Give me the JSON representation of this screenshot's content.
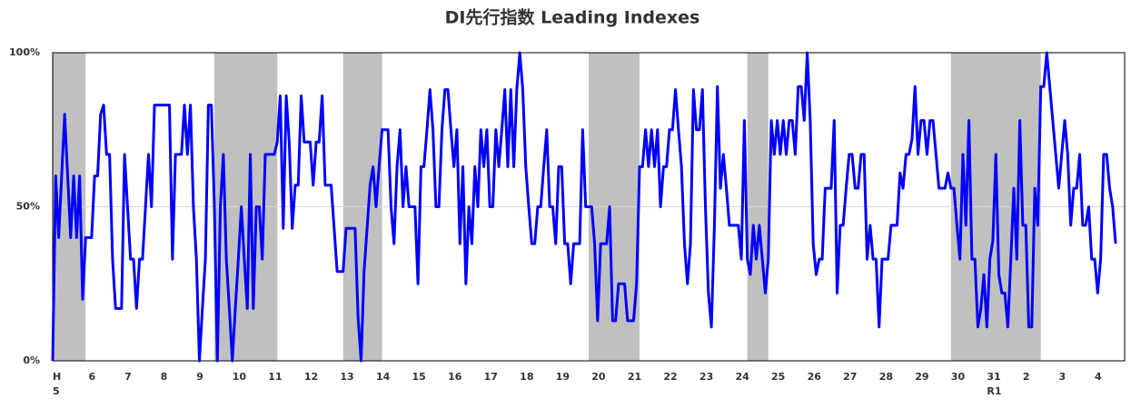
{
  "chart_data": {
    "type": "line",
    "title": "DI先行指数 Leading Indexes",
    "categories": [
      "H\n5",
      null,
      null,
      null,
      null,
      null,
      null,
      null,
      null,
      null,
      null,
      null,
      "6",
      null,
      null,
      null,
      null,
      null,
      null,
      null,
      null,
      null,
      null,
      null,
      "7",
      null,
      null,
      null,
      null,
      null,
      null,
      null,
      null,
      null,
      null,
      null,
      "8",
      null,
      null,
      null,
      null,
      null,
      null,
      null,
      null,
      null,
      null,
      null,
      "9",
      null,
      null,
      null,
      null,
      null,
      null,
      null,
      null,
      null,
      null,
      null,
      "10",
      null,
      null,
      null,
      null,
      null,
      null,
      null,
      null,
      null,
      null,
      null,
      "11",
      null,
      null,
      null,
      null,
      null,
      null,
      null,
      null,
      null,
      null,
      null,
      "12",
      null,
      null,
      null,
      null,
      null,
      null,
      null,
      null,
      null,
      null,
      null,
      "13",
      null,
      null,
      null,
      null,
      null,
      null,
      null,
      null,
      null,
      null,
      null,
      "14",
      null,
      null,
      null,
      null,
      null,
      null,
      null,
      null,
      null,
      null,
      null,
      "15",
      null,
      null,
      null,
      null,
      null,
      null,
      null,
      null,
      null,
      null,
      null,
      "16",
      null,
      null,
      null,
      null,
      null,
      null,
      null,
      null,
      null,
      null,
      null,
      "17",
      null,
      null,
      null,
      null,
      null,
      null,
      null,
      null,
      null,
      null,
      null,
      "18",
      null,
      null,
      null,
      null,
      null,
      null,
      null,
      null,
      null,
      null,
      null,
      "19",
      null,
      null,
      null,
      null,
      null,
      null,
      null,
      null,
      null,
      null,
      null,
      "20",
      null,
      null,
      null,
      null,
      null,
      null,
      null,
      null,
      null,
      null,
      null,
      "21",
      null,
      null,
      null,
      null,
      null,
      null,
      null,
      null,
      null,
      null,
      null,
      "22",
      null,
      null,
      null,
      null,
      null,
      null,
      null,
      null,
      null,
      null,
      null,
      "23",
      null,
      null,
      null,
      null,
      null,
      null,
      null,
      null,
      null,
      null,
      null,
      "24",
      null,
      null,
      null,
      null,
      null,
      null,
      null,
      null,
      null,
      null,
      null,
      "25",
      null,
      null,
      null,
      null,
      null,
      null,
      null,
      null,
      null,
      null,
      null,
      "26",
      null,
      null,
      null,
      null,
      null,
      null,
      null,
      null,
      null,
      null,
      null,
      "27",
      null,
      null,
      null,
      null,
      null,
      null,
      null,
      null,
      null,
      null,
      null,
      "28",
      null,
      null,
      null,
      null,
      null,
      null,
      null,
      null,
      null,
      null,
      null,
      "29",
      null,
      null,
      null,
      null,
      null,
      null,
      null,
      null,
      null,
      null,
      null,
      "30",
      null,
      null,
      null,
      null,
      null,
      null,
      null,
      null,
      null,
      null,
      null,
      "31\nR1",
      null,
      null,
      null,
      null,
      null,
      null,
      null,
      null,
      null,
      null,
      null,
      "2",
      null,
      null,
      null,
      null,
      null,
      null,
      null,
      null,
      null,
      null,
      null,
      "3",
      null,
      null,
      null,
      null,
      null,
      null,
      null,
      null,
      null,
      null,
      null,
      "4",
      null,
      null,
      null,
      null,
      null,
      null,
      null
    ],
    "series": [
      {
        "color": "#0000ff",
        "values": [
          0,
          60,
          40,
          60,
          80,
          60,
          40,
          60,
          40,
          60,
          20,
          40,
          40,
          40,
          60,
          60,
          80,
          83,
          67,
          67,
          33,
          17,
          17,
          17,
          67,
          50,
          33,
          33,
          17,
          33,
          33,
          50,
          67,
          50,
          83,
          83,
          83,
          83,
          83,
          83,
          33,
          67,
          67,
          67,
          83,
          67,
          83,
          50,
          33,
          0,
          17,
          33,
          83,
          83,
          50,
          0,
          50,
          67,
          33,
          17,
          0,
          17,
          33,
          50,
          33,
          17,
          67,
          17,
          50,
          50,
          33,
          67,
          67,
          67,
          67,
          71,
          86,
          43,
          86,
          71,
          43,
          57,
          57,
          86,
          71,
          71,
          71,
          57,
          71,
          71,
          86,
          57,
          57,
          57,
          43,
          29,
          29,
          29,
          43,
          43,
          43,
          43,
          14,
          0,
          29,
          43,
          57,
          63,
          50,
          63,
          75,
          75,
          75,
          50,
          38,
          63,
          75,
          50,
          63,
          50,
          50,
          50,
          25,
          63,
          63,
          75,
          88,
          75,
          50,
          50,
          75,
          88,
          88,
          75,
          63,
          75,
          38,
          63,
          25,
          50,
          38,
          63,
          50,
          75,
          63,
          75,
          50,
          50,
          75,
          63,
          75,
          88,
          63,
          88,
          63,
          88,
          100,
          88,
          63,
          50,
          38,
          38,
          50,
          50,
          63,
          75,
          50,
          50,
          38,
          63,
          63,
          38,
          38,
          25,
          38,
          38,
          38,
          75,
          50,
          50,
          50,
          38,
          13,
          38,
          38,
          38,
          50,
          13,
          13,
          25,
          25,
          25,
          13,
          13,
          13,
          25,
          63,
          63,
          75,
          63,
          75,
          63,
          75,
          50,
          63,
          63,
          75,
          75,
          88,
          75,
          63,
          38,
          25,
          38,
          88,
          75,
          75,
          88,
          50,
          22,
          11,
          44,
          89,
          56,
          67,
          56,
          44,
          44,
          44,
          44,
          33,
          78,
          33,
          28,
          44,
          33,
          44,
          33,
          22,
          33,
          78,
          67,
          78,
          67,
          78,
          67,
          78,
          78,
          67,
          89,
          89,
          78,
          100,
          78,
          38,
          28,
          33,
          33,
          56,
          56,
          56,
          78,
          22,
          44,
          44,
          56,
          67,
          67,
          56,
          56,
          67,
          67,
          33,
          44,
          33,
          33,
          11,
          33,
          33,
          33,
          44,
          44,
          44,
          61,
          56,
          67,
          67,
          72,
          89,
          67,
          78,
          78,
          67,
          78,
          78,
          67,
          56,
          56,
          56,
          61,
          56,
          56,
          44,
          33,
          67,
          44,
          78,
          33,
          33,
          11,
          17,
          28,
          11,
          33,
          39,
          67,
          28,
          22,
          22,
          11,
          33,
          56,
          33,
          78,
          44,
          44,
          11,
          11,
          56,
          44,
          89,
          89,
          100,
          89,
          78,
          67,
          56,
          67,
          78,
          67,
          44,
          56,
          56,
          67,
          44,
          44,
          50,
          33,
          33,
          22,
          33,
          67,
          67,
          56,
          50,
          38
        ]
      }
    ],
    "shaded_periods": [
      [
        0,
        10
      ],
      [
        54,
        74
      ],
      [
        97,
        109
      ],
      [
        179,
        195
      ],
      [
        232,
        238
      ],
      [
        300,
        329
      ]
    ],
    "shade_color": "#c0c0c0",
    "ylim": [
      0,
      100
    ],
    "yticks": [
      {
        "value": 0,
        "label": "0%"
      },
      {
        "value": 50,
        "label": "50%"
      },
      {
        "value": 100,
        "label": "100%"
      }
    ],
    "grid": true
  }
}
